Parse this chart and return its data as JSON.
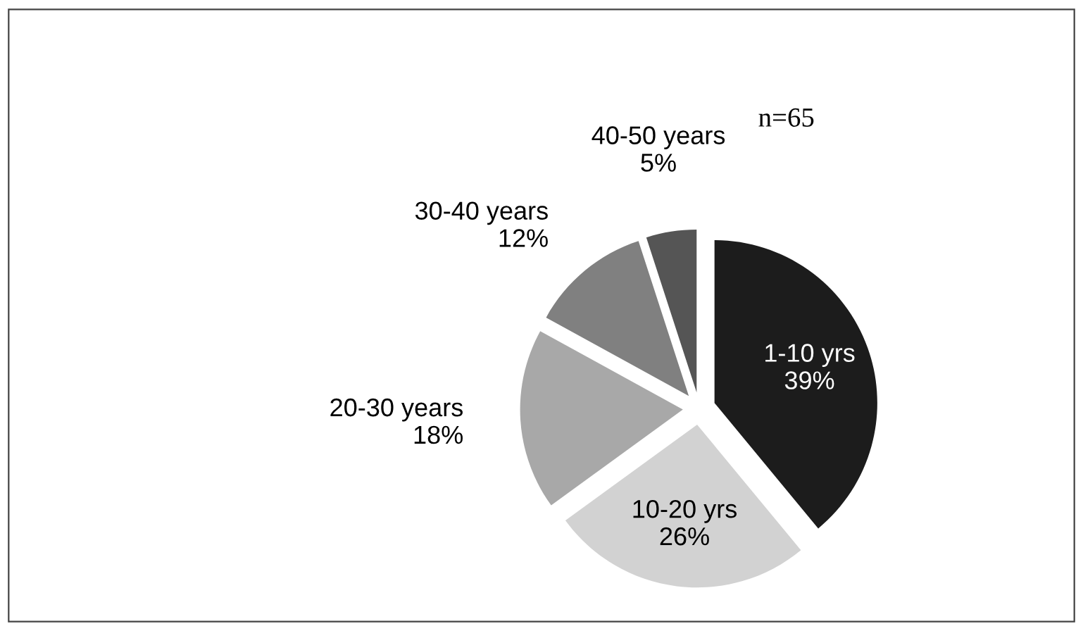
{
  "chart_data": {
    "type": "pie",
    "categories": [
      "1-10 yrs",
      "10-20 yrs",
      "20-30 years",
      "30-40 years",
      "40-50 years"
    ],
    "values": [
      39,
      26,
      18,
      12,
      5
    ],
    "value_labels": [
      "39%",
      "26%",
      "18%",
      "12%",
      "5%"
    ],
    "colors": [
      "#1c1c1c",
      "#d2d2d2",
      "#a8a8a8",
      "#808080",
      "#555555"
    ],
    "annotations": [
      "n=65"
    ],
    "legend": false
  }
}
